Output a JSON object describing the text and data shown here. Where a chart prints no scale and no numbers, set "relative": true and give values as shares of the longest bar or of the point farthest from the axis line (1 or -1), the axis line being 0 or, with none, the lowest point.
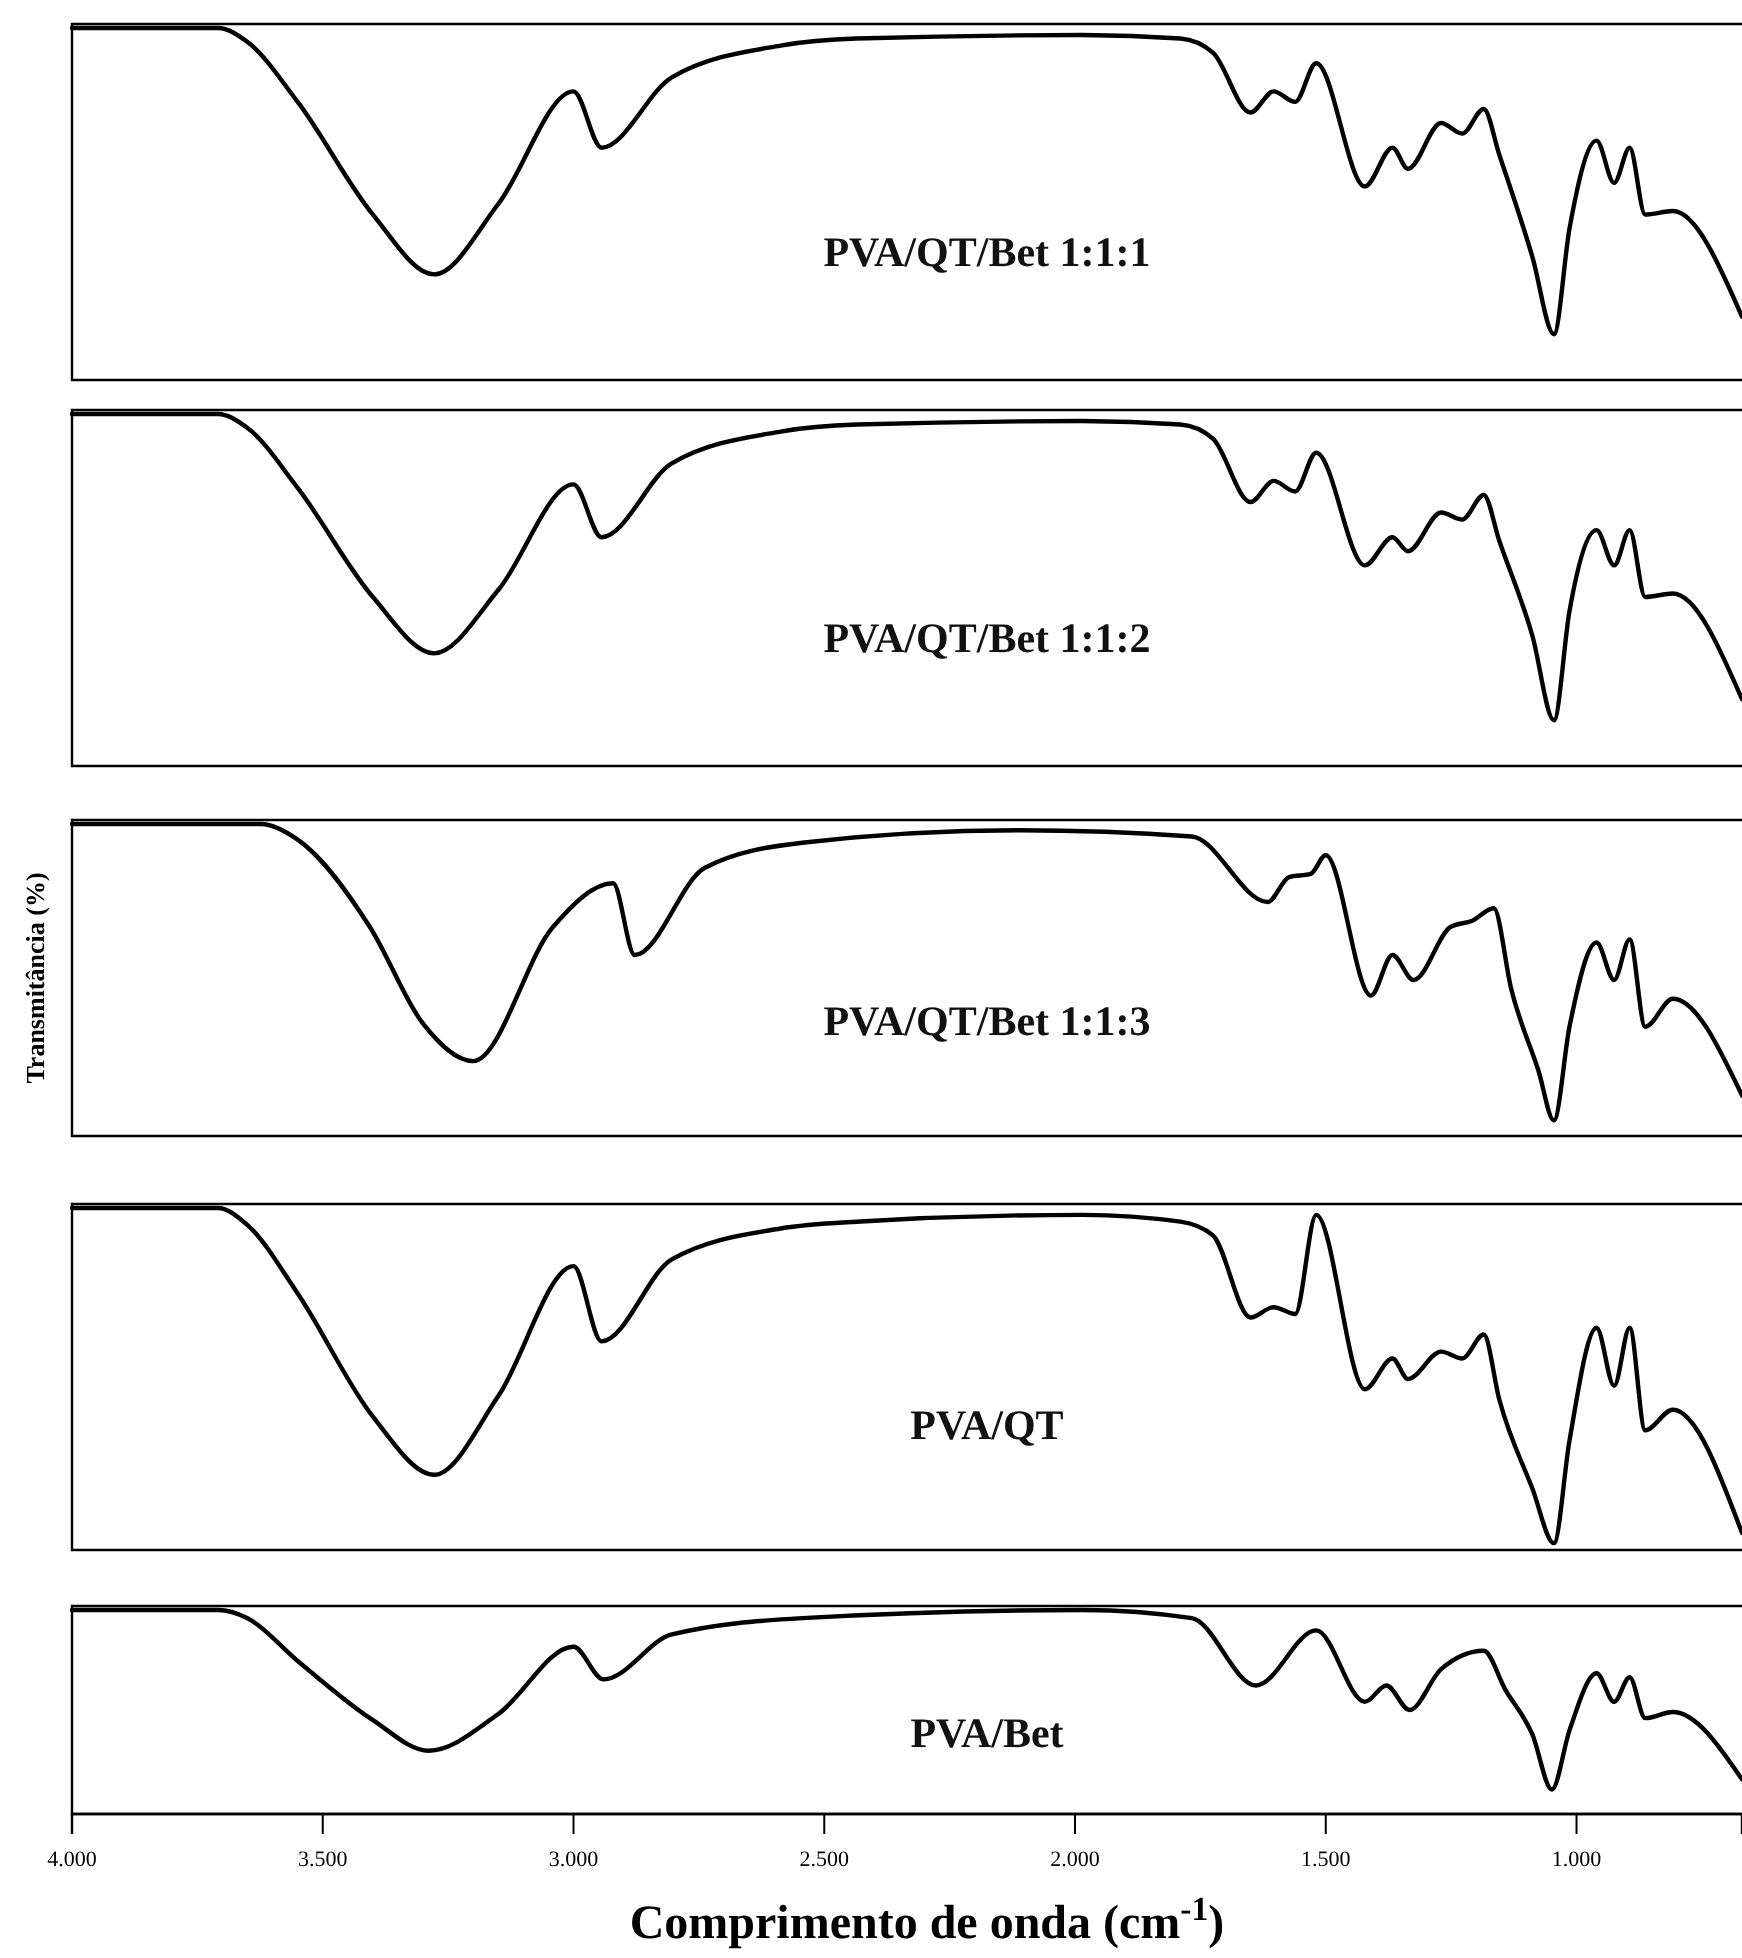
{
  "chart_data": [
    {
      "type": "line",
      "relative": true,
      "xlim": [
        4000,
        670
      ],
      "tick_labels": false,
      "marker": "none",
      "line_style": "solid",
      "series": [
        {
          "name": "PVA/QT/Bet 1:1:1",
          "color": "#000000",
          "x": [
            4000,
            3850,
            3709,
            3650,
            3550,
            3400,
            3278,
            3150,
            3000,
            2944,
            2804,
            2587,
            2436,
            1985,
            1790,
            1725,
            1650,
            1604,
            1561,
            1519,
            1422,
            1367,
            1336,
            1270,
            1228,
            1185,
            1154,
            1088,
            1045,
            1014,
            960,
            925,
            894,
            863,
            808,
            670
          ],
          "values": [
            1,
            1,
            1,
            0.96,
            0.79,
            0.47,
            0.3,
            0.5,
            0.82,
            0.66,
            0.86,
            0.95,
            0.97,
            0.98,
            0.97,
            0.93,
            0.76,
            0.82,
            0.79,
            0.9,
            0.55,
            0.66,
            0.6,
            0.73,
            0.7,
            0.77,
            0.64,
            0.35,
            0.13,
            0.43,
            0.68,
            0.56,
            0.66,
            0.47,
            0.48,
            0.18
          ]
        }
      ]
    },
    {
      "type": "line",
      "relative": true,
      "xlim": [
        4000,
        670
      ],
      "tick_labels": false,
      "marker": "none",
      "line_style": "solid",
      "series": [
        {
          "name": "PVA/QT/Bet 1:1:2",
          "color": "#000000",
          "x": [
            4000,
            3850,
            3709,
            3650,
            3550,
            3400,
            3278,
            3150,
            3000,
            2944,
            2804,
            2587,
            2436,
            1985,
            1790,
            1725,
            1650,
            1604,
            1561,
            1519,
            1422,
            1367,
            1336,
            1270,
            1228,
            1185,
            1154,
            1088,
            1045,
            1014,
            960,
            925,
            894,
            863,
            808,
            670
          ],
          "values": [
            1,
            1,
            1,
            0.96,
            0.79,
            0.48,
            0.32,
            0.5,
            0.8,
            0.65,
            0.86,
            0.95,
            0.97,
            0.98,
            0.97,
            0.93,
            0.75,
            0.81,
            0.78,
            0.89,
            0.57,
            0.65,
            0.61,
            0.72,
            0.7,
            0.77,
            0.64,
            0.37,
            0.13,
            0.44,
            0.67,
            0.57,
            0.67,
            0.48,
            0.49,
            0.19
          ]
        }
      ]
    },
    {
      "type": "line",
      "relative": true,
      "xlim": [
        4000,
        670
      ],
      "tick_labels": false,
      "marker": "none",
      "line_style": "solid",
      "ylabel": "Transmitância (%)",
      "series": [
        {
          "name": "PVA/QT/Bet 1:1:3",
          "color": "#000000",
          "x": [
            4000,
            3800,
            3623,
            3550,
            3406,
            3300,
            3200,
            3041,
            2921,
            2878,
            2738,
            2544,
            2113,
            1767,
            1616,
            1573,
            1530,
            1500,
            1410,
            1367,
            1325,
            1251,
            1208,
            1165,
            1130,
            1076,
            1045,
            1014,
            960,
            925,
            894,
            863,
            808,
            670
          ],
          "values": [
            1,
            1,
            1,
            0.95,
            0.67,
            0.36,
            0.24,
            0.67,
            0.81,
            0.58,
            0.86,
            0.94,
            0.98,
            0.96,
            0.75,
            0.83,
            0.84,
            0.9,
            0.45,
            0.58,
            0.5,
            0.67,
            0.69,
            0.73,
            0.47,
            0.21,
            0.05,
            0.35,
            0.62,
            0.5,
            0.63,
            0.35,
            0.44,
            0.13
          ]
        }
      ]
    },
    {
      "type": "line",
      "relative": true,
      "xlim": [
        4000,
        670
      ],
      "tick_labels": false,
      "marker": "none",
      "line_style": "solid",
      "series": [
        {
          "name": "PVA/QT",
          "color": "#000000",
          "x": [
            4000,
            3850,
            3709,
            3650,
            3550,
            3400,
            3278,
            3150,
            3000,
            2944,
            2804,
            2587,
            2436,
            1985,
            1790,
            1725,
            1650,
            1604,
            1561,
            1519,
            1422,
            1367,
            1336,
            1270,
            1228,
            1185,
            1154,
            1088,
            1045,
            1014,
            960,
            925,
            894,
            863,
            808,
            670
          ],
          "values": [
            1,
            1,
            1,
            0.95,
            0.75,
            0.39,
            0.22,
            0.45,
            0.83,
            0.61,
            0.85,
            0.94,
            0.96,
            0.98,
            0.96,
            0.92,
            0.68,
            0.71,
            0.69,
            0.98,
            0.47,
            0.56,
            0.5,
            0.58,
            0.56,
            0.63,
            0.44,
            0.18,
            0.02,
            0.32,
            0.65,
            0.48,
            0.65,
            0.35,
            0.41,
            0.05
          ]
        }
      ]
    },
    {
      "type": "line",
      "relative": true,
      "xlim": [
        4000,
        670
      ],
      "tick_labels": "x",
      "marker": "none",
      "line_style": "solid",
      "xlabel": "Comprimento de onda (cm$^{-1}$)",
      "xticks": [
        {
          "value": 4000,
          "label": "4.000"
        },
        {
          "value": 3500,
          "label": "3.500"
        },
        {
          "value": 3000,
          "label": "3.000"
        },
        {
          "value": 2500,
          "label": "2.500"
        },
        {
          "value": 2000,
          "label": "2.000"
        },
        {
          "value": 1500,
          "label": "1.500"
        },
        {
          "value": 1000,
          "label": "1.000"
        }
      ],
      "series": [
        {
          "name": "PVA/Bet",
          "color": "#000000",
          "x": [
            4000,
            3850,
            3709,
            3650,
            3550,
            3400,
            3289,
            3150,
            3000,
            2940,
            2804,
            2544,
            1985,
            1767,
            1639,
            1519,
            1422,
            1379,
            1333,
            1270,
            1185,
            1142,
            1088,
            1049,
            1014,
            960,
            925,
            894,
            863,
            808,
            670
          ],
          "values": [
            1,
            1,
            1,
            0.96,
            0.75,
            0.46,
            0.31,
            0.49,
            0.82,
            0.66,
            0.88,
            0.96,
            1,
            0.96,
            0.63,
            0.9,
            0.55,
            0.63,
            0.51,
            0.71,
            0.8,
            0.61,
            0.39,
            0.12,
            0.41,
            0.69,
            0.55,
            0.67,
            0.47,
            0.5,
            0.17
          ]
        }
      ]
    }
  ]
}
